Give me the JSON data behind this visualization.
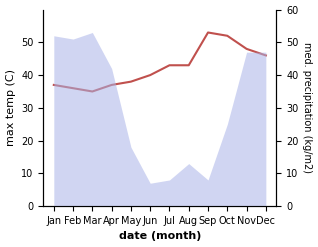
{
  "months": [
    "Jan",
    "Feb",
    "Mar",
    "Apr",
    "May",
    "Jun",
    "Jul",
    "Aug",
    "Sep",
    "Oct",
    "Nov",
    "Dec"
  ],
  "precipitation": [
    52,
    51,
    53,
    42,
    18,
    7,
    8,
    13,
    8,
    25,
    47,
    47
  ],
  "max_temp": [
    37,
    36,
    35,
    37,
    38,
    40,
    43,
    43,
    53,
    52,
    48,
    46
  ],
  "precip_color": "#aab4e8",
  "temp_color": "#c0504d",
  "precip_fill_alpha": 0.55,
  "xlabel": "date (month)",
  "ylabel_left": "max temp (C)",
  "ylabel_right": "med. precipitation (kg/m2)",
  "ylim_left": [
    0,
    60
  ],
  "ylim_right": [
    0,
    60
  ],
  "yticks_left": [
    0,
    10,
    20,
    30,
    40,
    50
  ],
  "yticks_right": [
    0,
    10,
    20,
    30,
    40,
    50,
    60
  ]
}
